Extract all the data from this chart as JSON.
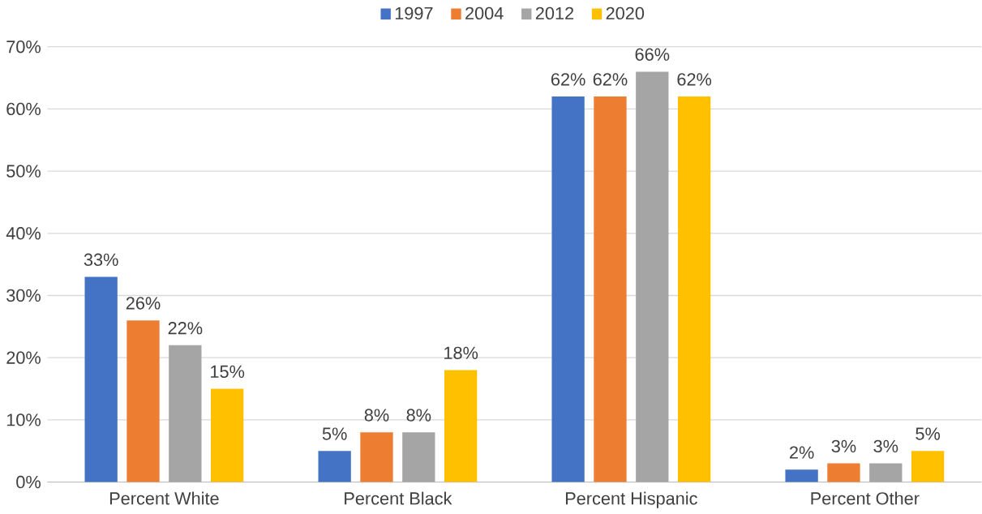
{
  "chart_data": {
    "type": "bar",
    "categories": [
      "Percent White",
      "Percent Black",
      "Percent Hispanic",
      "Percent Other"
    ],
    "series": [
      {
        "name": "1997",
        "color": "#4472c4",
        "values": [
          33,
          5,
          62,
          2
        ],
        "value_labels": [
          "33%",
          "5%",
          "62%",
          "2%"
        ]
      },
      {
        "name": "2004",
        "color": "#ed7d31",
        "values": [
          26,
          8,
          62,
          3
        ],
        "value_labels": [
          "26%",
          "8%",
          "62%",
          "3%"
        ]
      },
      {
        "name": "2012",
        "color": "#a5a5a5",
        "values": [
          22,
          8,
          66,
          3
        ],
        "value_labels": [
          "22%",
          "8%",
          "66%",
          "3%"
        ]
      },
      {
        "name": "2020",
        "color": "#ffc000",
        "values": [
          15,
          18,
          62,
          5
        ],
        "value_labels": [
          "15%",
          "18%",
          "62%",
          "5%"
        ]
      }
    ],
    "ylim": [
      0,
      70
    ],
    "yticks": [
      {
        "value": 0,
        "label": "0%"
      },
      {
        "value": 10,
        "label": "10%"
      },
      {
        "value": 20,
        "label": "20%"
      },
      {
        "value": 30,
        "label": "30%"
      },
      {
        "value": 40,
        "label": "40%"
      },
      {
        "value": 50,
        "label": "50%"
      },
      {
        "value": 60,
        "label": "60%"
      },
      {
        "value": 70,
        "label": "70%"
      }
    ],
    "grid": "y",
    "legend": "top"
  }
}
